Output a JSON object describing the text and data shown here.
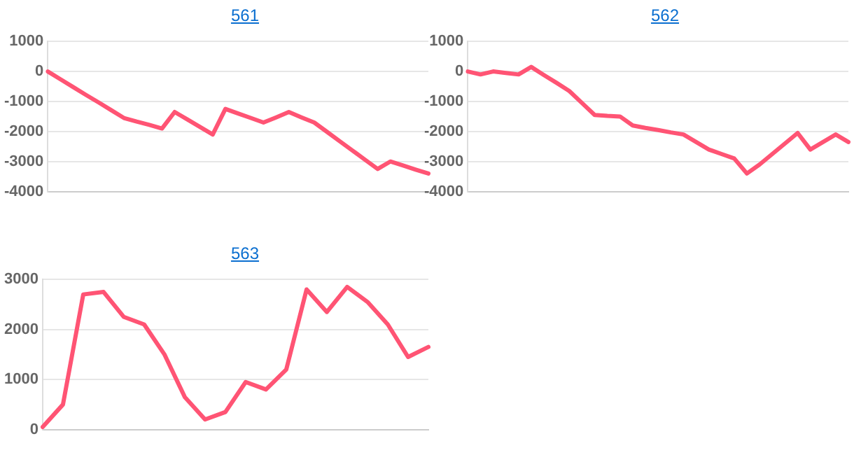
{
  "chart_data": [
    {
      "type": "line",
      "title": "561",
      "categories": [
        null,
        null,
        null,
        null,
        null,
        null,
        null,
        null,
        null,
        null,
        null,
        null,
        null,
        null,
        null,
        null,
        null,
        null,
        null,
        null,
        null,
        null,
        null,
        null,
        null,
        null,
        null,
        null,
        null,
        null,
        null
      ],
      "ylim": [
        -4000,
        1000
      ],
      "yticks": [
        -4000,
        -3000,
        -2000,
        -1000,
        0,
        1000
      ],
      "grid": "y",
      "marker": "none",
      "line_style": "solid",
      "series": [
        {
          "color": "#ff5474",
          "values": [
            0,
            -260,
            -520,
            -780,
            -1030,
            -1290,
            -1550,
            -1670,
            -1780,
            -1900,
            -1350,
            -1600,
            -1850,
            -2100,
            -1250,
            -1400,
            -1550,
            -1700,
            -1530,
            -1350,
            -1530,
            -1700,
            -2010,
            -2320,
            -2630,
            -2940,
            -3250,
            -3000,
            -3130,
            -3270,
            -3400
          ]
        }
      ]
    },
    {
      "type": "line",
      "title": "562",
      "categories": [
        null,
        null,
        null,
        null,
        null,
        null,
        null,
        null,
        null,
        null,
        null,
        null,
        null,
        null,
        null,
        null,
        null,
        null,
        null,
        null,
        null,
        null,
        null,
        null,
        null,
        null,
        null,
        null,
        null,
        null,
        null
      ],
      "ylim": [
        -4000,
        1000
      ],
      "yticks": [
        -4000,
        -3000,
        -2000,
        -1000,
        0,
        1000
      ],
      "grid": "y",
      "marker": "none",
      "line_style": "solid",
      "series": [
        {
          "color": "#ff5474",
          "values": [
            0,
            -100,
            0,
            -50,
            -100,
            150,
            -120,
            -380,
            -650,
            -1050,
            -1450,
            -1480,
            -1500,
            -1800,
            -1880,
            -1950,
            -2030,
            -2100,
            -2350,
            -2600,
            -2750,
            -2900,
            -3400,
            -3100,
            -2750,
            -2400,
            -2050,
            -2600,
            -2350,
            -2100,
            -2350
          ]
        }
      ]
    },
    {
      "type": "line",
      "title": "563",
      "categories": [
        null,
        null,
        null,
        null,
        null,
        null,
        null,
        null,
        null,
        null,
        null,
        null,
        null,
        null,
        null,
        null,
        null,
        null,
        null,
        null
      ],
      "ylim": [
        0,
        3000
      ],
      "yticks": [
        0,
        1000,
        2000,
        3000
      ],
      "grid": "y",
      "marker": "none",
      "line_style": "solid",
      "series": [
        {
          "color": "#ff5474",
          "values": [
            50,
            500,
            2700,
            2750,
            2250,
            2100,
            1500,
            650,
            200,
            350,
            950,
            800,
            1200,
            2800,
            2350,
            2850,
            2550,
            2100,
            1450,
            1650
          ]
        }
      ]
    }
  ]
}
